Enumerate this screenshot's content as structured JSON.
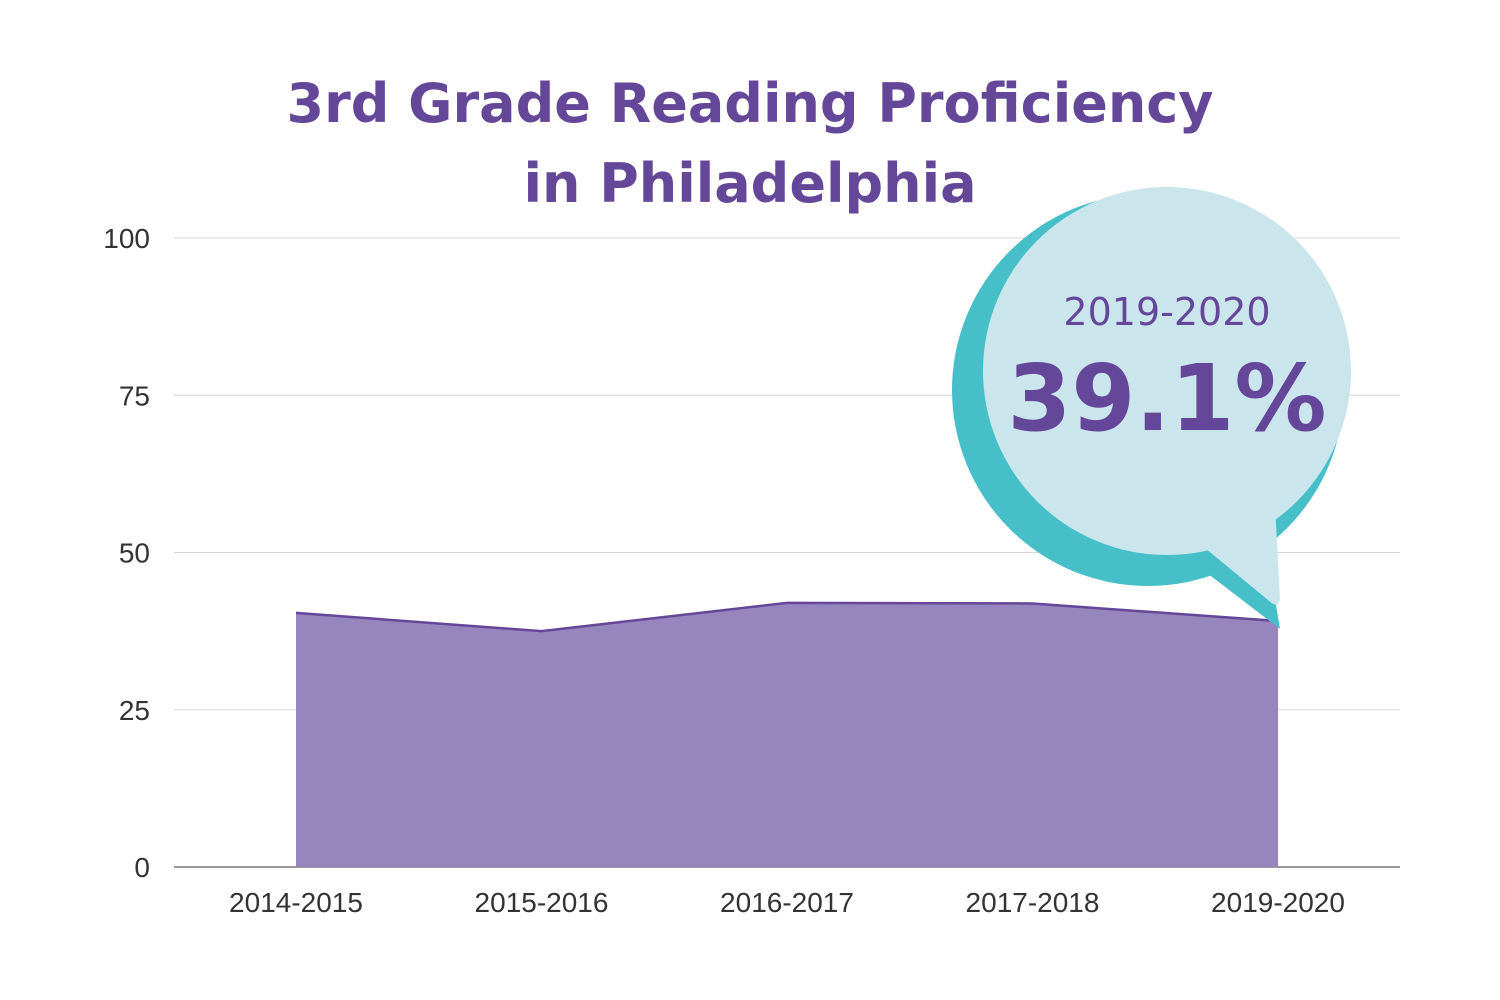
{
  "chart_data": {
    "type": "area",
    "title_line1": "3rd Grade Reading Proficiency",
    "title_line2": "in Philadelphia",
    "categories": [
      "2014-2015",
      "2015-2016",
      "2016-2017",
      "2017-2018",
      "2019-2020"
    ],
    "values": [
      40.4,
      37.5,
      42.0,
      41.9,
      39.1
    ],
    "ylim": [
      0,
      100
    ],
    "yticks": [
      0,
      25,
      50,
      75,
      100
    ],
    "grid": true,
    "xlabel": "",
    "ylabel": "",
    "callout": {
      "label": "2019-2020",
      "value": "39.1%"
    },
    "colors": {
      "area": "#9785bd",
      "line": "#65479a",
      "title": "#65479a",
      "bubble": "#cbe5ec",
      "bubble_shadow": "#46bfc9"
    }
  }
}
